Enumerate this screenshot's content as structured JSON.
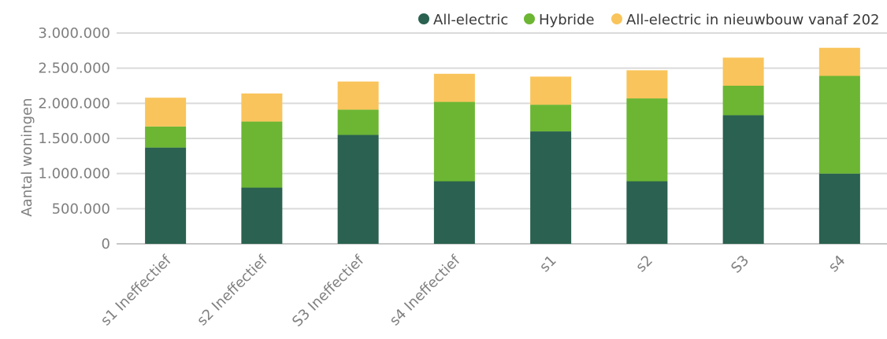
{
  "chart_data": {
    "type": "bar",
    "stacked": true,
    "title": "",
    "xlabel": "",
    "ylabel": "Aantal woningen",
    "ylim": [
      0,
      3000000
    ],
    "yticks": [
      0,
      500000,
      1000000,
      1500000,
      2000000,
      2500000,
      3000000
    ],
    "ytick_labels": [
      "0",
      "500.000",
      "1.000.000",
      "1.500.000",
      "2.000.000",
      "2.500.000",
      "3.000.000"
    ],
    "grid": true,
    "legend_position": "top-right",
    "categories": [
      "s1 Ineffectief",
      "s2 Ineffectief",
      "S3 Ineffectief",
      "s4 Ineffectief",
      "s1",
      "s2",
      "S3",
      "s4"
    ],
    "series": [
      {
        "name": "All-electric",
        "color": "#2a6150",
        "values": [
          1370000,
          800000,
          1550000,
          890000,
          1600000,
          890000,
          1830000,
          1000000
        ]
      },
      {
        "name": "Hybride",
        "color": "#6cb633",
        "values": [
          300000,
          940000,
          360000,
          1130000,
          380000,
          1180000,
          420000,
          1390000
        ]
      },
      {
        "name": "All-electric in nieuwbouw vanaf 202",
        "color": "#f9c45b",
        "values": [
          410000,
          400000,
          400000,
          400000,
          400000,
          400000,
          400000,
          400000
        ]
      }
    ]
  }
}
